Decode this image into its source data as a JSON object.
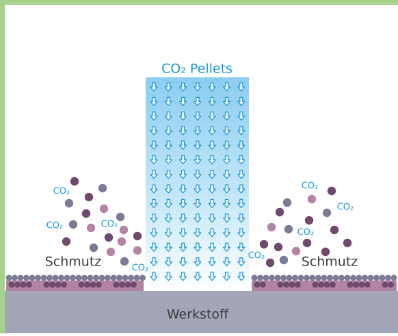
{
  "title": "CO₂ Pellets",
  "co2_labels": [
    "CO₂",
    "CO₂",
    "CO₂",
    "CO₂",
    "CO₂",
    "CO₂",
    "CO₂",
    "CO₂"
  ],
  "dirt_labels": [
    "Schmutz",
    "Schmutz"
  ],
  "substrate": "Werkstoff"
}
